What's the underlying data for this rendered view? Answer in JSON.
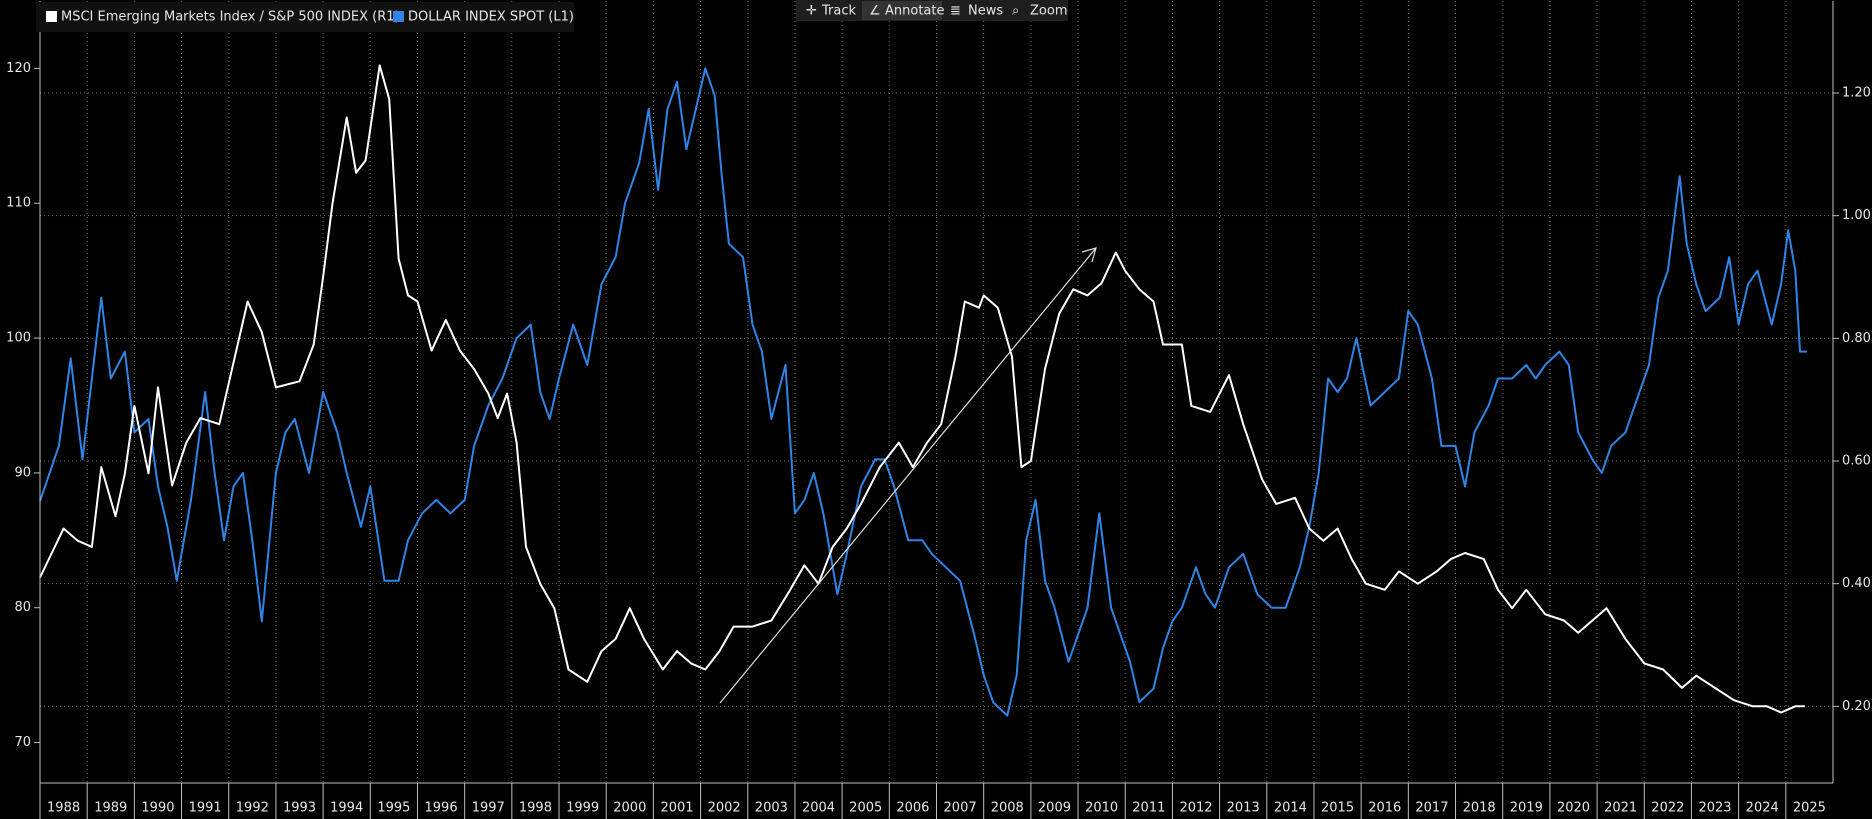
{
  "toolbar": {
    "items": [
      "Track",
      "Annotate",
      "News",
      "Zoom"
    ]
  },
  "chart_data": {
    "type": "line",
    "xlim": [
      1988,
      2026
    ],
    "xticks": [
      1988,
      1989,
      1990,
      1991,
      1992,
      1993,
      1994,
      1995,
      1996,
      1997,
      1998,
      1999,
      2000,
      2001,
      2002,
      2003,
      2004,
      2005,
      2006,
      2007,
      2008,
      2009,
      2010,
      2011,
      2012,
      2013,
      2014,
      2015,
      2016,
      2017,
      2018,
      2019,
      2020,
      2021,
      2022,
      2023,
      2024,
      2025
    ],
    "ylim": [
      67,
      125
    ],
    "yticks": [
      70,
      80,
      90,
      100,
      110,
      120
    ],
    "y2lim": [
      0.075,
      1.35
    ],
    "y2ticks": [
      {
        "value": 0.2,
        "label": "0.20"
      },
      {
        "value": 0.4,
        "label": "0.40"
      },
      {
        "value": 0.6,
        "label": "0.60"
      },
      {
        "value": 0.8,
        "label": "0.80"
      },
      {
        "value": 1.0,
        "label": "1.00"
      },
      {
        "value": 1.2,
        "label": "1.20"
      }
    ],
    "grid": true,
    "series": [
      {
        "name": "MSCI Emerging Markets Index / S&P 500 INDEX (R1)",
        "color": "#ffffff",
        "axis": "y2",
        "x": [
          1988.0,
          1988.5,
          1988.8,
          1989.1,
          1989.3,
          1989.6,
          1989.8,
          1990.0,
          1990.3,
          1990.5,
          1990.8,
          1991.1,
          1991.4,
          1991.8,
          1992.4,
          1992.7,
          1993.0,
          1993.5,
          1993.8,
          1994.0,
          1994.2,
          1994.5,
          1994.7,
          1994.9,
          1995.2,
          1995.4,
          1995.6,
          1995.8,
          1996.0,
          1996.3,
          1996.6,
          1996.9,
          1997.2,
          1997.5,
          1997.7,
          1997.9,
          1998.1,
          1998.3,
          1998.6,
          1998.9,
          1999.2,
          1999.6,
          1999.9,
          2000.2,
          2000.5,
          2000.8,
          2001.2,
          2001.5,
          2001.8,
          2002.1,
          2002.4,
          2002.7,
          2003.1,
          2003.5,
          2003.9,
          2004.2,
          2004.5,
          2004.8,
          2005.1,
          2005.4,
          2005.8,
          2006.2,
          2006.5,
          2006.8,
          2007.1,
          2007.4,
          2007.6,
          2007.9,
          2008.0,
          2008.3,
          2008.6,
          2008.8,
          2009.0,
          2009.3,
          2009.6,
          2009.9,
          2010.2,
          2010.5,
          2010.8,
          2011.0,
          2011.3,
          2011.6,
          2011.8,
          2012.2,
          2012.4,
          2012.8,
          2013.2,
          2013.5,
          2013.9,
          2014.2,
          2014.6,
          2014.9,
          2015.2,
          2015.5,
          2015.8,
          2016.1,
          2016.5,
          2016.8,
          2017.2,
          2017.6,
          2017.9,
          2018.2,
          2018.6,
          2018.9,
          2019.2,
          2019.5,
          2019.9,
          2020.3,
          2020.6,
          2020.9,
          2021.2,
          2021.6,
          2022.0,
          2022.4,
          2022.8,
          2023.1,
          2023.5,
          2023.9,
          2024.3,
          2024.6,
          2024.9,
          2025.2,
          2025.4
        ],
        "values": [
          0.41,
          0.49,
          0.47,
          0.46,
          0.59,
          0.51,
          0.58,
          0.69,
          0.58,
          0.72,
          0.56,
          0.63,
          0.67,
          0.66,
          0.86,
          0.81,
          0.72,
          0.73,
          0.79,
          0.9,
          1.02,
          1.16,
          1.07,
          1.09,
          1.245,
          1.19,
          0.93,
          0.87,
          0.86,
          0.78,
          0.83,
          0.78,
          0.75,
          0.71,
          0.67,
          0.71,
          0.63,
          0.46,
          0.4,
          0.36,
          0.26,
          0.24,
          0.29,
          0.31,
          0.36,
          0.31,
          0.26,
          0.29,
          0.27,
          0.26,
          0.29,
          0.33,
          0.33,
          0.34,
          0.39,
          0.43,
          0.4,
          0.46,
          0.49,
          0.53,
          0.59,
          0.63,
          0.59,
          0.63,
          0.66,
          0.77,
          0.86,
          0.85,
          0.87,
          0.85,
          0.77,
          0.59,
          0.6,
          0.75,
          0.84,
          0.88,
          0.87,
          0.89,
          0.94,
          0.91,
          0.88,
          0.86,
          0.79,
          0.79,
          0.69,
          0.68,
          0.74,
          0.66,
          0.57,
          0.53,
          0.54,
          0.49,
          0.47,
          0.49,
          0.44,
          0.4,
          0.39,
          0.42,
          0.4,
          0.42,
          0.44,
          0.45,
          0.44,
          0.39,
          0.36,
          0.39,
          0.35,
          0.34,
          0.32,
          0.34,
          0.36,
          0.31,
          0.27,
          0.26,
          0.23,
          0.25,
          0.23,
          0.21,
          0.2,
          0.2,
          0.19,
          0.2,
          0.2
        ]
      },
      {
        "name": "DOLLAR INDEX SPOT (L1)",
        "color": "#2f84e6",
        "x": [
          1988.0,
          1988.4,
          1988.65,
          1988.9,
          1989.1,
          1989.3,
          1989.5,
          1989.8,
          1990.0,
          1990.3,
          1990.5,
          1990.7,
          1990.9,
          1991.2,
          1991.5,
          1991.7,
          1991.9,
          1992.1,
          1992.3,
          1992.5,
          1992.7,
          1993.0,
          1993.2,
          1993.4,
          1993.7,
          1994.0,
          1994.3,
          1994.5,
          1994.8,
          1995.0,
          1995.3,
          1995.6,
          1995.8,
          1996.1,
          1996.4,
          1996.7,
          1997.0,
          1997.2,
          1997.5,
          1997.8,
          1998.1,
          1998.4,
          1998.6,
          1998.8,
          1999.0,
          1999.3,
          1999.6,
          1999.9,
          2000.2,
          2000.4,
          2000.7,
          2000.9,
          2001.1,
          2001.3,
          2001.5,
          2001.7,
          2001.9,
          2002.1,
          2002.3,
          2002.45,
          2002.6,
          2002.9,
          2003.1,
          2003.3,
          2003.5,
          2003.8,
          2004.0,
          2004.2,
          2004.4,
          2004.6,
          2004.9,
          2005.1,
          2005.4,
          2005.7,
          2005.9,
          2006.1,
          2006.4,
          2006.7,
          2006.9,
          2007.2,
          2007.5,
          2007.8,
          2008.0,
          2008.2,
          2008.5,
          2008.7,
          2008.9,
          2009.1,
          2009.3,
          2009.5,
          2009.8,
          2010.0,
          2010.2,
          2010.45,
          2010.7,
          2010.9,
          2011.1,
          2011.3,
          2011.6,
          2011.8,
          2012.0,
          2012.2,
          2012.5,
          2012.7,
          2012.9,
          2013.2,
          2013.5,
          2013.8,
          2014.1,
          2014.4,
          2014.7,
          2014.9,
          2015.1,
          2015.3,
          2015.5,
          2015.7,
          2015.9,
          2016.2,
          2016.5,
          2016.8,
          2017.0,
          2017.2,
          2017.5,
          2017.7,
          2018.0,
          2018.2,
          2018.4,
          2018.7,
          2018.9,
          2019.2,
          2019.5,
          2019.7,
          2019.9,
          2020.2,
          2020.4,
          2020.6,
          2020.9,
          2021.1,
          2021.3,
          2021.6,
          2021.9,
          2022.1,
          2022.3,
          2022.5,
          2022.75,
          2022.9,
          2023.1,
          2023.3,
          2023.6,
          2023.8,
          2024.0,
          2024.2,
          2024.4,
          2024.7,
          2024.9,
          2025.05,
          2025.2,
          2025.3,
          2025.45
        ],
        "values": [
          87.9,
          92,
          98.5,
          91,
          97,
          103,
          97,
          99,
          93,
          94,
          89,
          86,
          82,
          88,
          96,
          90,
          85,
          89,
          90,
          85,
          79,
          90,
          93,
          94,
          90,
          96,
          93,
          90,
          86,
          89,
          82,
          82,
          85,
          87,
          88,
          87,
          88,
          92,
          95,
          97,
          100,
          101,
          96,
          94,
          97,
          101,
          98,
          104,
          106,
          110,
          113,
          117,
          111,
          117,
          119,
          114,
          117,
          120,
          118,
          112,
          107,
          106,
          101,
          99,
          94,
          98,
          87,
          88,
          90,
          87,
          81,
          84,
          89,
          91,
          91,
          89,
          85,
          85,
          84,
          83,
          82,
          78,
          75,
          73,
          72,
          75,
          85,
          88,
          82,
          80,
          76,
          78,
          80,
          87,
          80,
          78,
          76,
          73,
          74,
          77,
          79,
          80,
          83,
          81,
          80,
          83,
          84,
          81,
          80,
          80,
          83,
          86,
          90,
          97,
          96,
          97,
          100,
          95,
          96,
          97,
          102,
          101,
          97,
          92,
          92,
          89,
          93,
          95,
          97,
          97,
          98,
          97,
          98,
          99,
          98,
          93,
          91,
          90,
          92,
          93,
          96,
          98,
          103,
          105,
          112,
          107,
          104,
          102,
          103,
          106,
          101,
          104,
          105,
          101,
          104,
          108,
          105,
          99,
          99
        ]
      }
    ]
  }
}
